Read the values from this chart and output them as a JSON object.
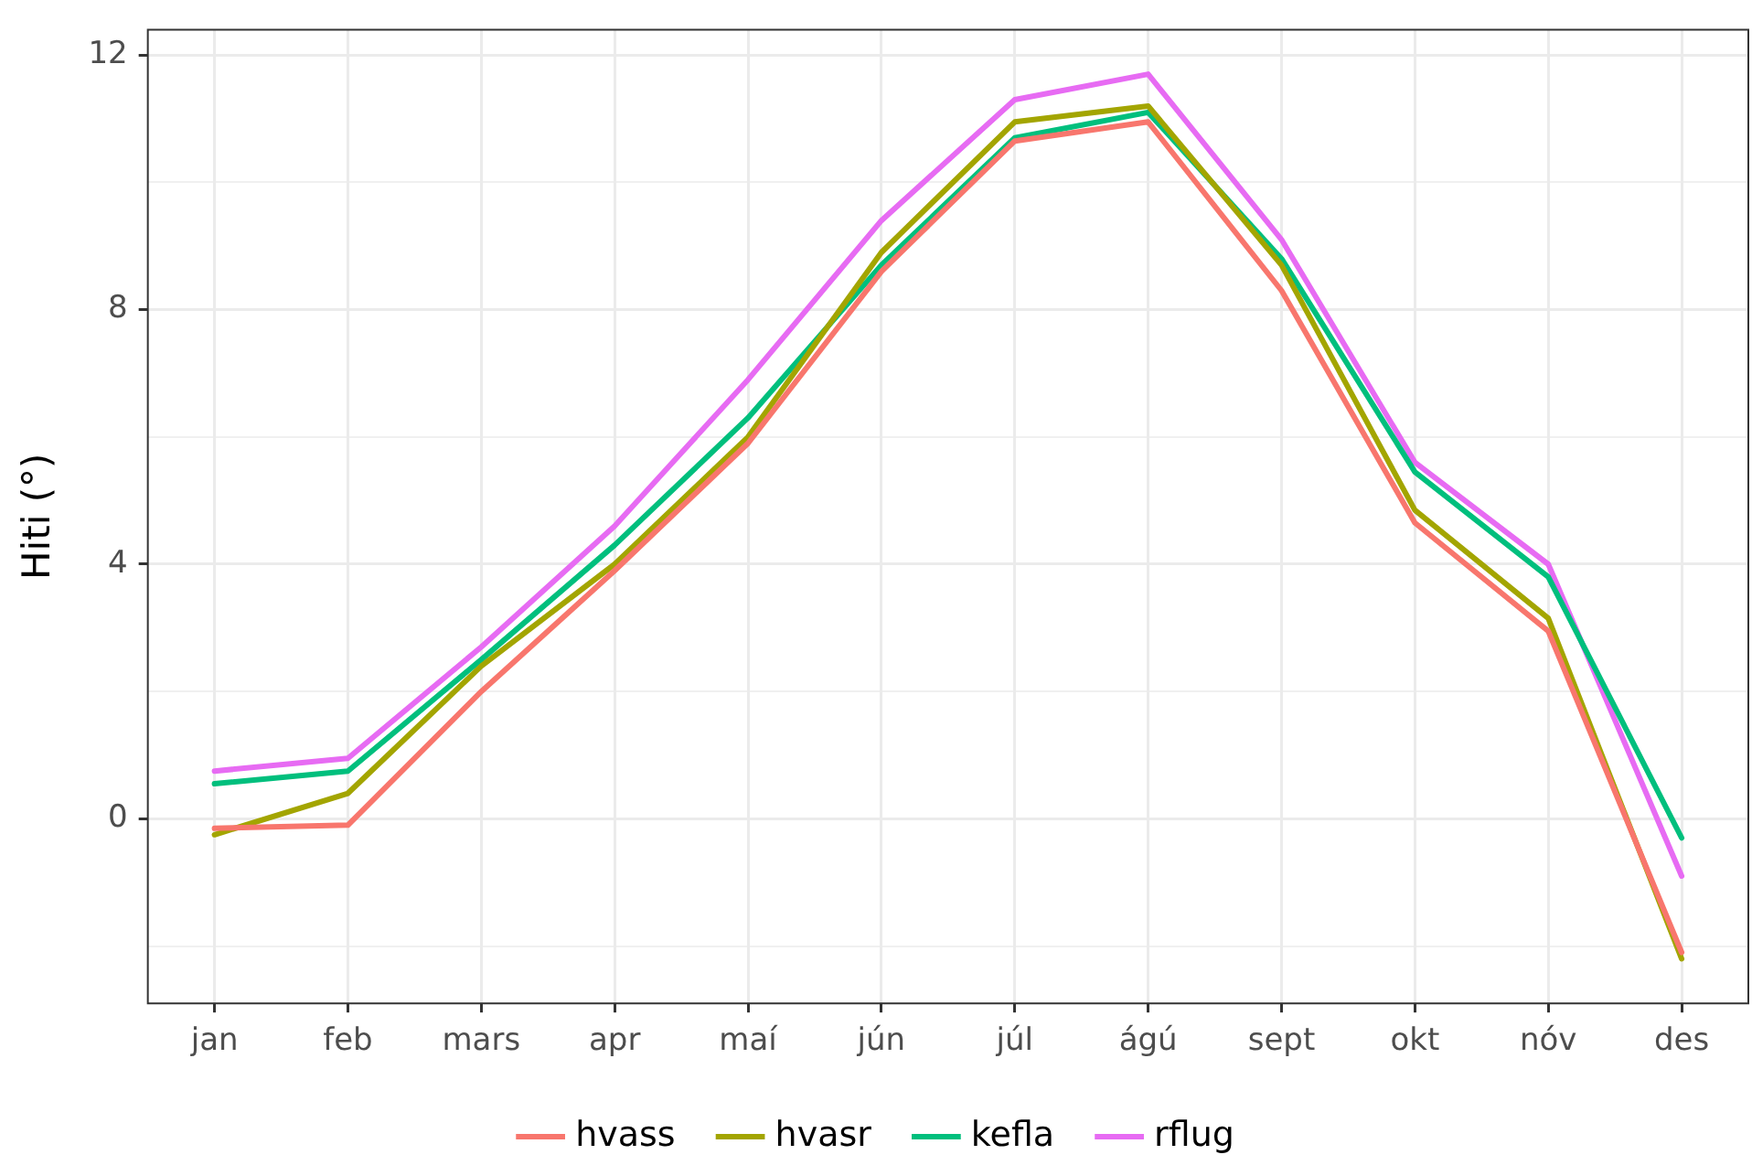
{
  "chart_data": {
    "type": "line",
    "ylabel": "Hiti (°)",
    "categories": [
      "jan",
      "feb",
      "mars",
      "apr",
      "maí",
      "jún",
      "júl",
      "ágú",
      "sept",
      "okt",
      "nóv",
      "des"
    ],
    "series": [
      {
        "name": "hvass",
        "color": "#f8766d",
        "values": [
          -0.15,
          -0.1,
          2.0,
          3.9,
          5.9,
          8.6,
          10.65,
          10.95,
          8.3,
          4.65,
          2.95,
          -2.1
        ]
      },
      {
        "name": "hvasr",
        "color": "#a3a500",
        "values": [
          -0.25,
          0.4,
          2.4,
          4.0,
          6.0,
          8.9,
          10.95,
          11.2,
          8.7,
          4.85,
          3.15,
          -2.2
        ]
      },
      {
        "name": "kefla",
        "color": "#00bf7d",
        "values": [
          0.55,
          0.75,
          2.5,
          4.3,
          6.3,
          8.7,
          10.7,
          11.1,
          8.8,
          5.45,
          3.8,
          -0.3
        ]
      },
      {
        "name": "rflug",
        "color": "#e76bf3",
        "values": [
          0.75,
          0.95,
          2.7,
          4.6,
          6.9,
          9.4,
          11.3,
          11.7,
          9.1,
          5.6,
          4.0,
          -0.9
        ]
      }
    ],
    "ylim": [
      -2.9,
      12.4
    ],
    "yticks": [
      {
        "value": -2,
        "label": null
      },
      0,
      {
        "value": 2,
        "label": null
      },
      4,
      {
        "value": 6,
        "label": null
      },
      8,
      {
        "value": 10,
        "label": null
      },
      12
    ],
    "grid": true,
    "legend": "bottom",
    "marker": "none",
    "line_style": "solid"
  }
}
